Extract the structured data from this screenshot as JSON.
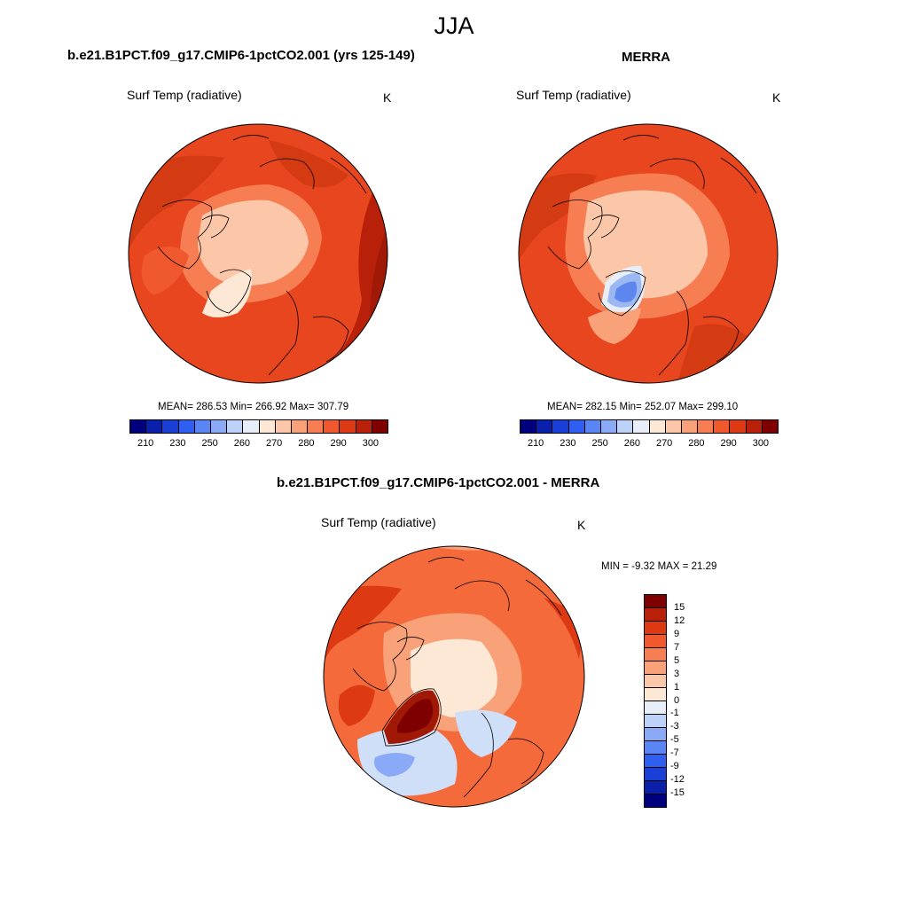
{
  "figure_title": "JJA",
  "panels": [
    {
      "title": "b.e21.B1PCT.f09_g17.CMIP6-1pctCO2.001 (yrs 125-149)",
      "variable": "Surf Temp (radiative)",
      "units": "K",
      "stats": "MEAN= 286.53  Min= 266.92  Max= 307.79"
    },
    {
      "title": "MERRA",
      "variable": "Surf Temp (radiative)",
      "units": "K",
      "stats": "MEAN= 282.15  Min= 252.07  Max= 299.10"
    },
    {
      "title": "b.e21.B1PCT.f09_g17.CMIP6-1pctCO2.001 - MERRA",
      "variable": "Surf Temp (radiative)",
      "units": "K",
      "stats": "MIN =  -9.32 MAX =  21.29"
    }
  ],
  "abs_colorbar": {
    "colors": [
      "#00007f",
      "#0a1faa",
      "#1a3fd6",
      "#2e5ff0",
      "#5a86f5",
      "#8aaaf7",
      "#bcd2f8",
      "#e8eef8",
      "#fde7d5",
      "#fbc7a8",
      "#f9a27a",
      "#f77d52",
      "#f0582e",
      "#dd3a14",
      "#b8200a",
      "#7f0000"
    ],
    "tick_labels": [
      "210",
      "230",
      "250",
      "260",
      "270",
      "280",
      "290",
      "300"
    ]
  },
  "diff_colorbar": {
    "colors": [
      "#7f0000",
      "#b8200a",
      "#dd3a14",
      "#f0582e",
      "#f77d52",
      "#f9a27a",
      "#fbc7a8",
      "#fde7d5",
      "#e8eef8",
      "#bcd2f8",
      "#8aaaf7",
      "#5a86f5",
      "#2e5ff0",
      "#1a3fd6",
      "#0a1faa",
      "#00007f"
    ],
    "tick_labels": [
      "15",
      "12",
      "9",
      "7",
      "5",
      "3",
      "1",
      "0",
      "-1",
      "-3",
      "-5",
      "-7",
      "-9",
      "-12",
      "-15"
    ]
  },
  "map_colors": {
    "ocean_warm": "#e8461e",
    "land_hot": "#d43b12",
    "ice_pale": "#fcd3b6",
    "very_hot": "#a01806",
    "cold": "#9bb8f2",
    "very_cold": "#5e86ef",
    "diff_base": "#f46a3b",
    "diff_neutral": "#fde7d5",
    "diff_cool": "#cfdff8"
  }
}
